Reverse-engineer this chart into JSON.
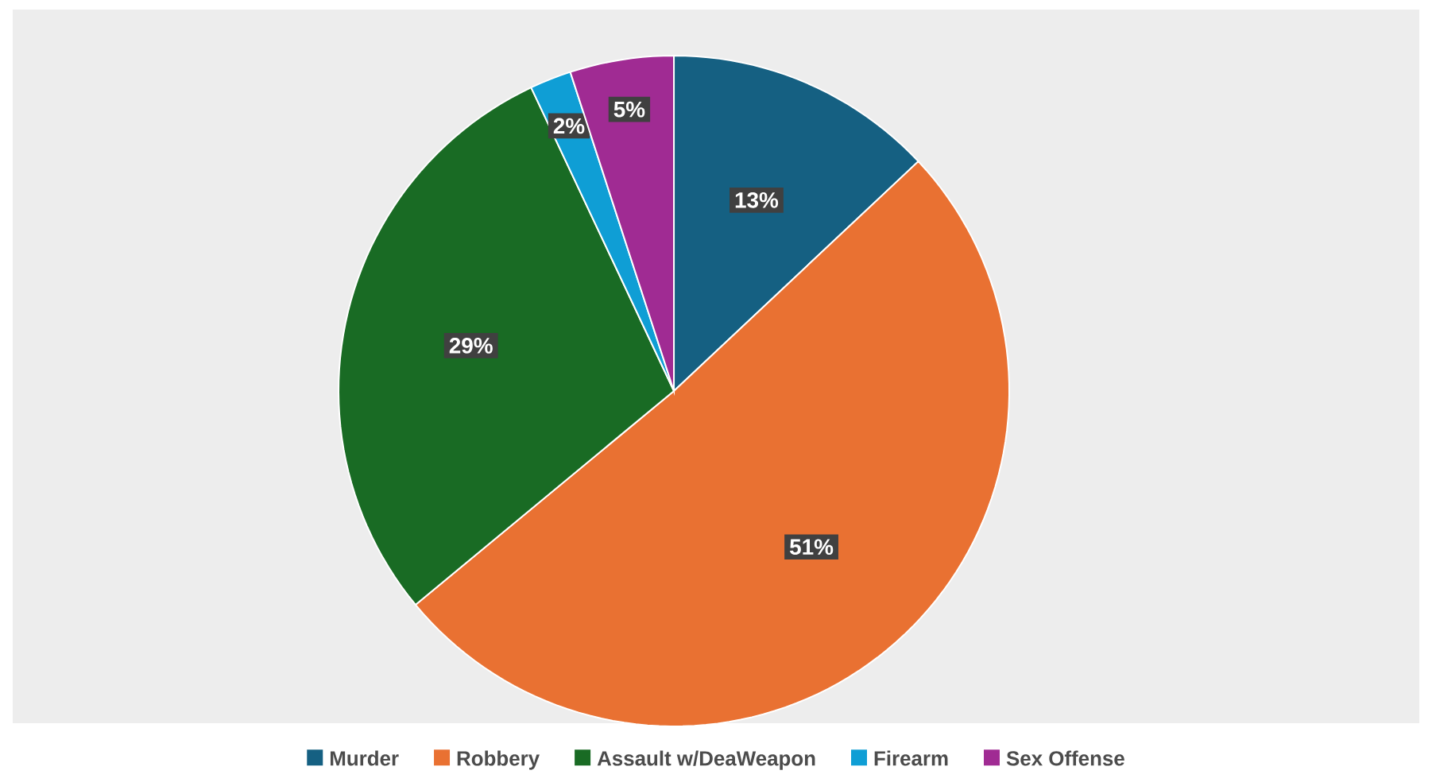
{
  "chart_data": {
    "type": "pie",
    "categories": [
      "Murder",
      "Robbery",
      "Assault w/DeaWeapon",
      "Firearm",
      "Sex Offense"
    ],
    "values": [
      13,
      51,
      29,
      2,
      5
    ],
    "colors": [
      "#156082",
      "#e97132",
      "#196b24",
      "#0f9ed5",
      "#a02b93"
    ],
    "value_labels": [
      "13%",
      "51%",
      "29%",
      "2%",
      "5%"
    ],
    "legend": "bottom"
  }
}
